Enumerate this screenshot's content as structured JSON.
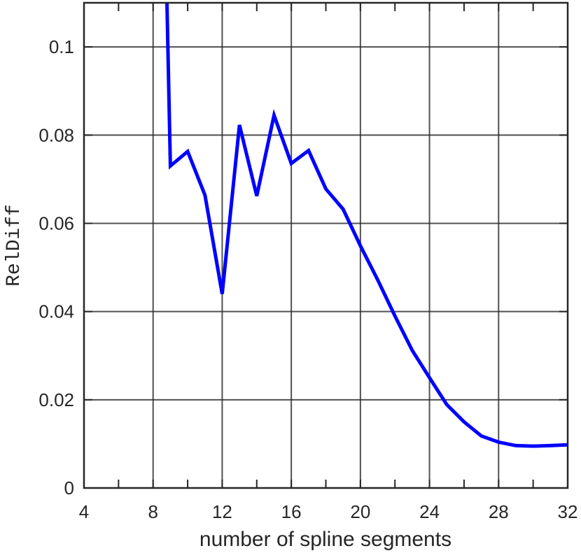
{
  "chart_data": {
    "type": "line",
    "title": "",
    "xlabel": "number of spline segments",
    "ylabel": "RelDiff",
    "xlim": [
      4,
      32
    ],
    "ylim": [
      0,
      0.11
    ],
    "grid": true,
    "xticks": [
      4,
      8,
      12,
      16,
      20,
      24,
      28,
      32
    ],
    "xtick_labels": [
      "4",
      "8",
      "12",
      "16",
      "20",
      "24",
      "28",
      "32"
    ],
    "yticks": [
      0,
      0.02,
      0.04,
      0.06,
      0.08,
      0.1
    ],
    "ytick_labels": [
      "0",
      "0.02",
      "0.04",
      "0.06",
      "0.08",
      "0.1"
    ],
    "series": [
      {
        "color": "#0000ff",
        "x": [
          8.8,
          9,
          10,
          11,
          12,
          13,
          14,
          15,
          16,
          17,
          18,
          19,
          20,
          21,
          22,
          23,
          24,
          25,
          26,
          27,
          28,
          29,
          30,
          31,
          32
        ],
        "values": [
          0.11,
          0.073,
          0.0763,
          0.0664,
          0.044,
          0.0823,
          0.0662,
          0.0845,
          0.0736,
          0.0765,
          0.0678,
          0.0632,
          0.0549,
          0.0472,
          0.039,
          0.0312,
          0.025,
          0.0189,
          0.015,
          0.0118,
          0.0104,
          0.0096,
          0.0095,
          0.0096,
          0.0098
        ]
      }
    ]
  }
}
